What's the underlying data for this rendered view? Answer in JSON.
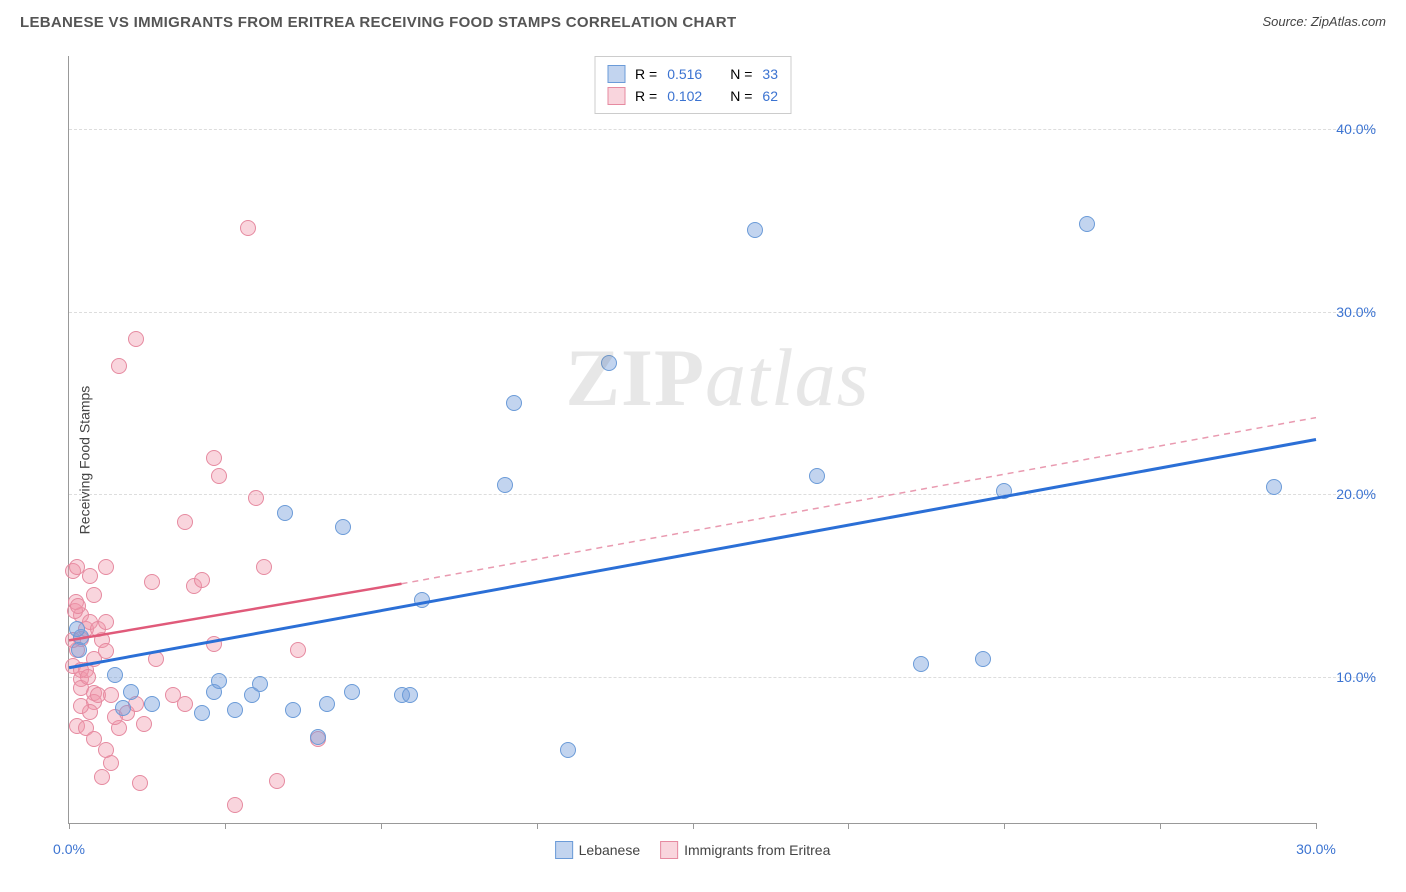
{
  "header": {
    "title": "LEBANESE VS IMMIGRANTS FROM ERITREA RECEIVING FOOD STAMPS CORRELATION CHART",
    "source": "Source: ZipAtlas.com"
  },
  "ylabel": "Receiving Food Stamps",
  "watermark": {
    "prefix": "ZIP",
    "suffix": "atlas"
  },
  "legend_top": {
    "series1": {
      "r_label": "R =",
      "r_value": "0.516",
      "n_label": "N =",
      "n_value": "33"
    },
    "series2": {
      "r_label": "R =",
      "r_value": "0.102",
      "n_label": "N =",
      "n_value": "62"
    }
  },
  "legend_bottom": {
    "series1_name": "Lebanese",
    "series2_name": "Immigrants from Eritrea"
  },
  "colors": {
    "blue_fill": "rgba(120,160,220,0.45)",
    "blue_stroke": "#6b9bd8",
    "pink_fill": "rgba(240,150,170,0.40)",
    "pink_stroke": "#e68aa0",
    "blue_line": "#2b6fd6",
    "pink_line": "#e05a7a",
    "pink_dash": "#e99ab0",
    "tick_text": "#3b73d1",
    "grid": "#dddddd"
  },
  "axes": {
    "xmin": 0,
    "xmax": 30,
    "ymin": 2,
    "ymax": 44,
    "xticks": [
      0,
      3.75,
      7.5,
      11.25,
      15,
      18.75,
      22.5,
      26.25,
      30
    ],
    "xtick_labels": {
      "0": "0.0%",
      "30": "30.0%"
    },
    "ygrid": [
      10,
      20,
      30,
      40
    ],
    "ytick_labels": {
      "10": "10.0%",
      "20": "20.0%",
      "30": "30.0%",
      "40": "40.0%"
    }
  },
  "marker_radius": 8,
  "series_blue": {
    "points": [
      [
        3.5,
        9.2
      ],
      [
        5.2,
        19.0
      ],
      [
        6.2,
        8.5
      ],
      [
        6.6,
        18.2
      ],
      [
        8.0,
        9.0
      ],
      [
        8.5,
        14.2
      ],
      [
        10.5,
        20.5
      ],
      [
        10.7,
        25.0
      ],
      [
        13.0,
        27.2
      ],
      [
        12.0,
        6.0
      ],
      [
        6.0,
        6.7
      ],
      [
        16.5,
        34.5
      ],
      [
        18.0,
        21.0
      ],
      [
        20.5,
        10.7
      ],
      [
        22.0,
        11.0
      ],
      [
        22.5,
        20.2
      ],
      [
        24.5,
        34.8
      ],
      [
        29.0,
        20.4
      ],
      [
        3.2,
        8.0
      ],
      [
        4.4,
        9.0
      ],
      [
        4.6,
        9.6
      ],
      [
        6.8,
        9.2
      ],
      [
        8.2,
        9.0
      ],
      [
        4.0,
        8.2
      ],
      [
        3.6,
        9.8
      ],
      [
        0.3,
        12.2
      ],
      [
        0.25,
        11.5
      ],
      [
        1.1,
        10.1
      ],
      [
        1.5,
        9.2
      ],
      [
        0.2,
        12.6
      ],
      [
        1.3,
        8.3
      ],
      [
        2.0,
        8.5
      ],
      [
        5.4,
        8.2
      ]
    ],
    "trend": {
      "x1": 0,
      "y1": 10.5,
      "x2": 30,
      "y2": 23.0
    }
  },
  "series_pink": {
    "points": [
      [
        0.1,
        15.8
      ],
      [
        0.2,
        16.0
      ],
      [
        0.3,
        12.1
      ],
      [
        0.4,
        12.6
      ],
      [
        0.2,
        11.5
      ],
      [
        0.3,
        13.4
      ],
      [
        0.5,
        13.0
      ],
      [
        0.6,
        14.5
      ],
      [
        0.1,
        12.0
      ],
      [
        0.3,
        9.9
      ],
      [
        0.3,
        9.4
      ],
      [
        0.6,
        9.1
      ],
      [
        0.6,
        8.6
      ],
      [
        0.7,
        9.0
      ],
      [
        0.5,
        8.1
      ],
      [
        0.3,
        8.4
      ],
      [
        0.1,
        10.6
      ],
      [
        0.4,
        10.4
      ],
      [
        0.6,
        11.0
      ],
      [
        0.8,
        12.0
      ],
      [
        0.7,
        12.6
      ],
      [
        0.9,
        13.0
      ],
      [
        0.9,
        11.4
      ],
      [
        1.0,
        9.0
      ],
      [
        1.2,
        7.2
      ],
      [
        1.1,
        7.8
      ],
      [
        1.4,
        8.0
      ],
      [
        1.0,
        5.3
      ],
      [
        1.7,
        4.2
      ],
      [
        0.8,
        4.5
      ],
      [
        1.2,
        27.0
      ],
      [
        1.6,
        28.5
      ],
      [
        2.5,
        9.0
      ],
      [
        2.8,
        18.5
      ],
      [
        2.8,
        8.5
      ],
      [
        3.0,
        15.0
      ],
      [
        3.2,
        15.3
      ],
      [
        3.5,
        11.8
      ],
      [
        3.5,
        22.0
      ],
      [
        3.6,
        21.0
      ],
      [
        4.0,
        3.0
      ],
      [
        4.3,
        34.6
      ],
      [
        4.5,
        19.8
      ],
      [
        4.7,
        16.0
      ],
      [
        5.0,
        4.3
      ],
      [
        5.5,
        11.5
      ],
      [
        6.0,
        6.6
      ],
      [
        0.2,
        7.3
      ],
      [
        0.4,
        7.2
      ],
      [
        0.6,
        6.6
      ],
      [
        0.9,
        6.0
      ],
      [
        1.8,
        7.4
      ],
      [
        2.0,
        15.2
      ],
      [
        2.1,
        11.0
      ],
      [
        0.15,
        13.6
      ],
      [
        0.18,
        14.1
      ],
      [
        0.22,
        13.9
      ],
      [
        0.5,
        15.5
      ],
      [
        0.9,
        16.0
      ],
      [
        0.3,
        10.4
      ],
      [
        0.45,
        10.0
      ],
      [
        1.6,
        8.5
      ]
    ],
    "trend_solid": {
      "x1": 0,
      "y1": 12.0,
      "x2": 8,
      "y2": 15.1
    },
    "trend_dash": {
      "x1": 8,
      "y1": 15.1,
      "x2": 30,
      "y2": 24.2
    }
  }
}
